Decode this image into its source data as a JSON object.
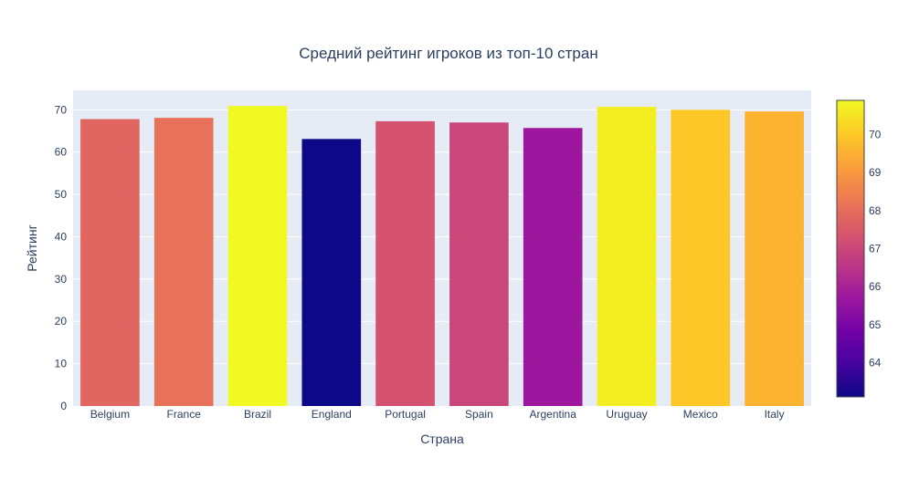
{
  "chart_data": {
    "type": "bar",
    "title": "Средний рейтинг игроков из топ-10 стран",
    "xlabel": "Страна",
    "ylabel": "Рейтинг",
    "categories": [
      "Belgium",
      "France",
      "Brazil",
      "England",
      "Portugal",
      "Spain",
      "Argentina",
      "Uruguay",
      "Mexico",
      "Italy"
    ],
    "values": [
      67.8,
      68.1,
      70.9,
      63.1,
      67.3,
      67.0,
      65.7,
      70.7,
      70.0,
      69.6
    ],
    "ylim": [
      0,
      74.6
    ],
    "yticks": [
      0,
      10,
      20,
      30,
      40,
      50,
      60,
      70
    ],
    "grid": true,
    "colorscale": "Plasma",
    "colorbar": {
      "range": [
        63.1,
        70.9
      ],
      "ticks": [
        64,
        65,
        66,
        67,
        68,
        69,
        70
      ]
    },
    "colors": {
      "plot_background": "#e5ecf6",
      "gridline": "#ffffff",
      "text": "#2a3f5f"
    }
  }
}
